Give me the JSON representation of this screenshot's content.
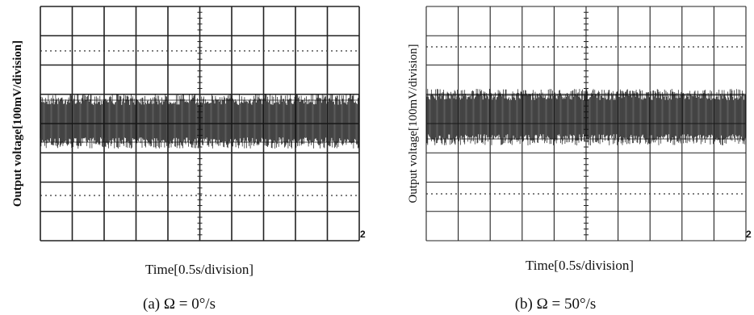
{
  "panels": [
    {
      "y_label": "Output voltage[100mV/division]",
      "x_label": "Time[0.5s/division]",
      "caption": "(a) Ω = 0°/s",
      "marker": "2"
    },
    {
      "y_label": "Output voltage[100mV/division]",
      "x_label": "Time[0.5s/division]",
      "caption": "(b) Ω = 50°/s",
      "marker": "2"
    }
  ]
}
